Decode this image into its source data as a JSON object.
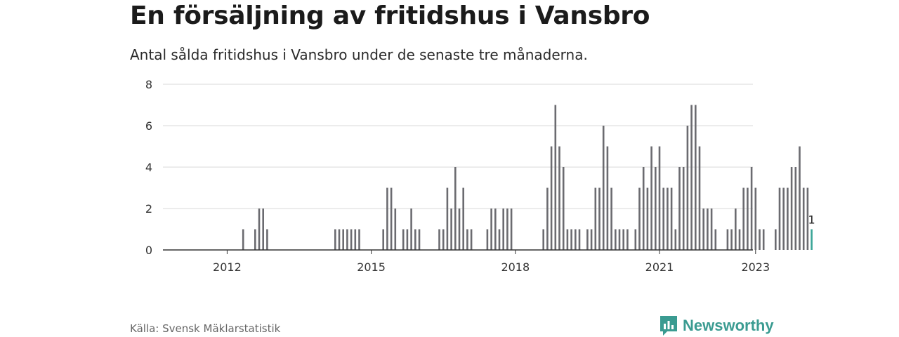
{
  "title": "En försäljning av fritidshus i Vansbro",
  "subtitle": "Antal sålda fritidshus i Vansbro under de senaste tre månaderna.",
  "source": "Källa: Svensk Mäklarstatistik",
  "brand": {
    "name": "Newsworthy",
    "icon": "newsworthy-logo-icon"
  },
  "colors": {
    "bar": "#6b6b70",
    "highlight": "#3aa597",
    "grid": "#d9d9d9",
    "axis": "#333333"
  },
  "chart_data": {
    "type": "bar",
    "x_unit": "month",
    "start": "2011-01",
    "values": [
      0,
      0,
      0,
      0,
      0,
      0,
      0,
      0,
      0,
      0,
      0,
      0,
      0,
      0,
      0,
      0,
      1,
      0,
      0,
      1,
      2,
      2,
      1,
      0,
      0,
      0,
      0,
      0,
      0,
      0,
      0,
      0,
      0,
      0,
      0,
      0,
      0,
      0,
      0,
      1,
      1,
      1,
      1,
      1,
      1,
      1,
      0,
      0,
      0,
      0,
      0,
      1,
      3,
      3,
      2,
      0,
      1,
      1,
      2,
      1,
      1,
      0,
      0,
      0,
      0,
      1,
      1,
      3,
      2,
      4,
      2,
      3,
      1,
      1,
      0,
      0,
      0,
      1,
      2,
      2,
      1,
      2,
      2,
      2,
      0,
      0,
      0,
      0,
      0,
      0,
      0,
      1,
      3,
      5,
      7,
      5,
      4,
      1,
      1,
      1,
      1,
      0,
      1,
      1,
      3,
      3,
      6,
      5,
      3,
      1,
      1,
      1,
      1,
      0,
      1,
      3,
      4,
      3,
      5,
      4,
      5,
      3,
      3,
      3,
      1,
      4,
      4,
      6,
      7,
      7,
      5,
      2,
      2,
      2,
      1,
      0,
      0,
      1,
      1,
      2,
      1,
      3,
      3,
      4,
      3,
      1,
      1,
      0,
      0,
      1,
      3,
      3,
      3,
      4,
      4,
      5,
      3,
      3,
      1
    ],
    "highlight_last": true,
    "last_value_label": "1",
    "x_ticks": [
      "2012",
      "2015",
      "2018",
      "2021",
      "2023"
    ],
    "y_ticks": [
      0,
      2,
      4,
      6,
      8
    ],
    "ylim": [
      0,
      8
    ],
    "grid": true
  }
}
